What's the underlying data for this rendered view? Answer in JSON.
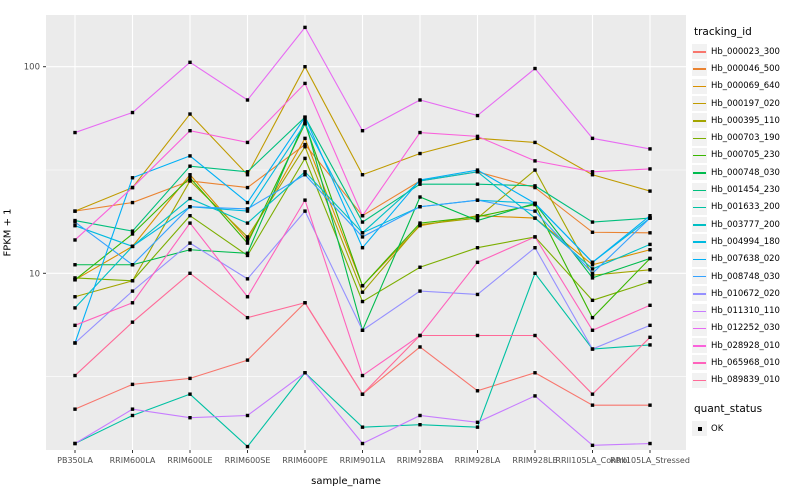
{
  "figure": {
    "background": "#FFFFFF",
    "panel_bg": "#EBEBEB",
    "grid_color": "#FFFFFF",
    "point_color": "#000000",
    "axis_text_color": "#4D4D4D",
    "tick_color": "#333333"
  },
  "axes": {
    "x_label": "sample_name",
    "y_label": "FPKM + 1",
    "y_tick_labels": [
      "100",
      "10"
    ]
  },
  "legend": {
    "tracking_title": "tracking_id",
    "quant_title": "quant_status",
    "quant_items": [
      "OK"
    ]
  },
  "chart_data": {
    "type": "line",
    "title": "",
    "xlabel": "sample_name",
    "ylabel": "FPKM + 1",
    "y_scale": "log10",
    "ylim": [
      1.35,
      180
    ],
    "y_major_ticks": [
      10,
      100
    ],
    "y_minor_ticks": [
      3.162,
      31.62
    ],
    "grid": true,
    "legend_position": "right",
    "point_shape": "square",
    "x_categories": [
      "PB350LA",
      "RRIM600LA",
      "RRIM600LE",
      "RRIM600SE",
      "RRIM600PE",
      "RRIM901LA",
      "RRIM928BA",
      "RRIM928LA",
      "RRIM928LE",
      "RRII105LA_Control",
      "RRII105LA_Stressed"
    ],
    "series": [
      {
        "name": "Hb_000023_300",
        "color": "#F8766D",
        "values": [
          2.2,
          2.9,
          3.1,
          3.8,
          7.2,
          2.6,
          4.4,
          2.7,
          3.3,
          2.3,
          2.3
        ]
      },
      {
        "name": "Hb_000046_500",
        "color": "#EA8331",
        "values": [
          20,
          22,
          28,
          26,
          42,
          19,
          28,
          31,
          26,
          15.8,
          15.7
        ]
      },
      {
        "name": "Hb_000069_640",
        "color": "#D89000",
        "values": [
          9.3,
          13.5,
          30,
          14.5,
          45,
          8.7,
          17,
          19,
          18.5,
          11,
          13
        ]
      },
      {
        "name": "Hb_000197_020",
        "color": "#C09B00",
        "values": [
          20,
          26,
          59,
          30,
          100,
          30,
          38,
          45,
          43,
          30,
          25
        ]
      },
      {
        "name": "Hb_000395_110",
        "color": "#A3A500",
        "values": [
          7.7,
          9.2,
          28,
          15,
          41,
          8.1,
          17.2,
          18.5,
          31.6,
          9.8,
          10.4
        ]
      },
      {
        "name": "Hb_000703_190",
        "color": "#7CAE00",
        "values": [
          9.5,
          9.2,
          19,
          12.2,
          36,
          7.3,
          10.7,
          13.3,
          15,
          7.4,
          9.1
        ]
      },
      {
        "name": "Hb_000705_230",
        "color": "#39B600",
        "values": [
          9.3,
          15.5,
          29,
          14,
          53,
          8.7,
          17.5,
          18.8,
          21.5,
          6.1,
          11.8
        ]
      },
      {
        "name": "Hb_000748_030",
        "color": "#00BB4E",
        "values": [
          11,
          11,
          13,
          12.5,
          55,
          5.3,
          23.4,
          18,
          21.8,
          9.5,
          11.8
        ]
      },
      {
        "name": "Hb_001454_230",
        "color": "#00BF7D",
        "values": [
          18,
          16,
          33,
          31,
          57,
          17.7,
          27,
          27,
          26.5,
          17.7,
          18.5
        ]
      },
      {
        "name": "Hb_001633_200",
        "color": "#00C1A3",
        "values": [
          1.5,
          2.05,
          2.6,
          1.45,
          3.3,
          1.8,
          1.85,
          1.8,
          10,
          4.3,
          4.5
        ]
      },
      {
        "name": "Hb_003777_200",
        "color": "#00BFC4",
        "values": [
          6.8,
          13.5,
          23,
          17.5,
          31,
          15.7,
          28,
          31,
          18.5,
          10.5,
          13.8
        ]
      },
      {
        "name": "Hb_004994_180",
        "color": "#00BAE0",
        "values": [
          17,
          13.5,
          21,
          20,
          53,
          15.7,
          21,
          22.6,
          21.8,
          11.3,
          18.5
        ]
      },
      {
        "name": "Hb_007638_020",
        "color": "#00B0F6",
        "values": [
          4.6,
          29,
          37,
          22,
          57,
          13.3,
          28.3,
          31.6,
          21.8,
          11.3,
          19
        ]
      },
      {
        "name": "Hb_008748_030",
        "color": "#35A2FF",
        "values": [
          17.7,
          11,
          21,
          20.5,
          30,
          15,
          21,
          22.6,
          20,
          10,
          18.5
        ]
      },
      {
        "name": "Hb_010672_020",
        "color": "#9590FF",
        "values": [
          4.6,
          8.2,
          14,
          9.4,
          20,
          5.3,
          8.2,
          7.9,
          13.3,
          4.3,
          5.6
        ]
      },
      {
        "name": "Hb_011310_110",
        "color": "#C77CFF",
        "values": [
          1.5,
          2.2,
          2.0,
          2.05,
          3.3,
          1.5,
          2.05,
          1.9,
          2.55,
          1.47,
          1.5
        ]
      },
      {
        "name": "Hb_012252_030",
        "color": "#E76BF3",
        "values": [
          48,
          60,
          105,
          69,
          155,
          49,
          69,
          58,
          98,
          45,
          40
        ]
      },
      {
        "name": "Hb_028928_010",
        "color": "#FA62DB",
        "values": [
          14.5,
          26,
          49,
          43,
          83,
          19,
          48,
          46,
          35,
          31,
          32
        ]
      },
      {
        "name": "Hb_065968_010",
        "color": "#FF62BC",
        "values": [
          5.6,
          7.2,
          17.5,
          7.7,
          22.6,
          3.2,
          5.0,
          11.3,
          15,
          5.3,
          7.0
        ]
      },
      {
        "name": "Hb_089839_010",
        "color": "#FF6A98",
        "values": [
          3.2,
          5.8,
          10,
          6.1,
          7.2,
          2.6,
          5.0,
          5.0,
          5.0,
          2.6,
          4.9
        ]
      }
    ],
    "quant_status": {
      "title": "quant_status",
      "items": [
        "OK"
      ]
    }
  }
}
